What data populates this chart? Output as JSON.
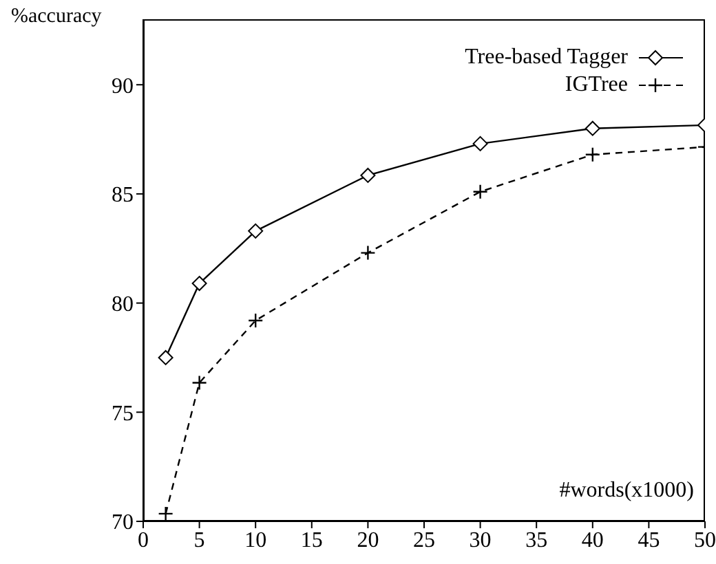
{
  "chart_data": {
    "type": "line",
    "ylabel": "%accuracy",
    "xlabel": "#words(x1000)",
    "x": [
      2,
      5,
      10,
      20,
      30,
      40,
      50
    ],
    "series": [
      {
        "name": "Tree-based Tagger",
        "color": "#000000",
        "marker": "diamond",
        "line_style": "solid",
        "values": [
          77.5,
          80.9,
          83.3,
          85.85,
          87.3,
          88.0,
          88.15
        ]
      },
      {
        "name": "IGTree",
        "color": "#000000",
        "marker": "cross",
        "line_style": "dashed",
        "values": [
          70.35,
          76.35,
          79.2,
          82.3,
          85.1,
          86.8,
          87.15
        ]
      }
    ],
    "xlim": [
      0,
      50
    ],
    "xticks": [
      0,
      5,
      10,
      15,
      20,
      25,
      30,
      35,
      40,
      45,
      50
    ],
    "ylim": [
      70,
      93
    ],
    "yticks": [
      70,
      75,
      80,
      85,
      90
    ],
    "grid": false,
    "legend": "top right"
  }
}
